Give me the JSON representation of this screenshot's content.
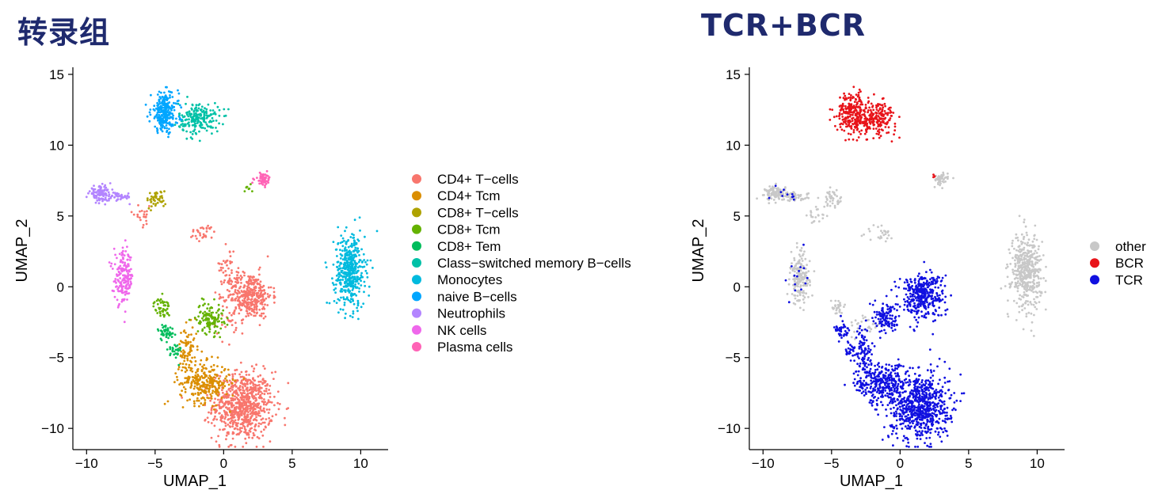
{
  "chart_data": [
    {
      "type": "scatter",
      "title": "转录组",
      "xlabel": "UMAP_1",
      "ylabel": "UMAP_2",
      "xlim": [
        -11,
        12
      ],
      "ylim": [
        -11.5,
        15.5
      ],
      "xticks": [
        -10,
        -5,
        0,
        5,
        10
      ],
      "yticks": [
        -10,
        -5,
        0,
        5,
        10,
        15
      ],
      "legend_position": "right",
      "legend": [
        {
          "label": "CD4+ T−cells",
          "color": "#F8766D"
        },
        {
          "label": "CD4+ Tcm",
          "color": "#DB8E00"
        },
        {
          "label": "CD8+ T−cells",
          "color": "#AEA200"
        },
        {
          "label": "CD8+ Tcm",
          "color": "#64B200"
        },
        {
          "label": "CD8+ Tem",
          "color": "#00BD5C"
        },
        {
          "label": "Class−switched memory B−cells",
          "color": "#00C1A7"
        },
        {
          "label": "Monocytes",
          "color": "#00BADE"
        },
        {
          "label": "naive B−cells",
          "color": "#00A6FF"
        },
        {
          "label": "Neutrophils",
          "color": "#B385FF"
        },
        {
          "label": "NK cells",
          "color": "#EF67EB"
        },
        {
          "label": "Plasma cells",
          "color": "#FF63B6"
        }
      ],
      "clusters": [
        {
          "group": "CD4+ T−cells",
          "cx": 1.4,
          "cy": -8.4,
          "sx": 1.1,
          "sy": 1.2,
          "n": 750
        },
        {
          "group": "CD4+ T−cells",
          "cx": 1.9,
          "cy": -0.6,
          "sx": 0.8,
          "sy": 0.8,
          "n": 360
        },
        {
          "group": "CD4+ T−cells",
          "cx": -1.5,
          "cy": 3.8,
          "sx": 0.5,
          "sy": 0.3,
          "n": 30
        },
        {
          "group": "CD4+ T−cells",
          "cx": 0.3,
          "cy": 1.6,
          "sx": 0.3,
          "sy": 0.9,
          "n": 40
        },
        {
          "group": "CD4+ T−cells",
          "cx": -6.0,
          "cy": 5.0,
          "sx": 0.4,
          "sy": 0.35,
          "n": 22
        },
        {
          "group": "CD4+ T−cells",
          "cx": 0.5,
          "cy": -2.5,
          "sx": 0.7,
          "sy": 0.7,
          "n": 25
        },
        {
          "group": "CD4+ Tcm",
          "cx": -1.4,
          "cy": -6.8,
          "sx": 0.9,
          "sy": 0.7,
          "n": 280
        },
        {
          "group": "CD4+ Tcm",
          "cx": -2.6,
          "cy": -4.5,
          "sx": 0.35,
          "sy": 0.9,
          "n": 80
        },
        {
          "group": "CD8+ T−cells",
          "cx": -4.9,
          "cy": 6.2,
          "sx": 0.35,
          "sy": 0.3,
          "n": 45
        },
        {
          "group": "CD8+ Tcm",
          "cx": -1.0,
          "cy": -2.2,
          "sx": 0.5,
          "sy": 0.55,
          "n": 120
        },
        {
          "group": "CD8+ Tcm",
          "cx": -4.5,
          "cy": -1.5,
          "sx": 0.3,
          "sy": 0.35,
          "n": 45
        },
        {
          "group": "CD8+ Tcm",
          "cx": 1.8,
          "cy": 7.0,
          "sx": 0.2,
          "sy": 0.15,
          "n": 8
        },
        {
          "group": "CD8+ Tem",
          "cx": -4.2,
          "cy": -3.2,
          "sx": 0.3,
          "sy": 0.3,
          "n": 45
        },
        {
          "group": "CD8+ Tem",
          "cx": -3.6,
          "cy": -4.6,
          "sx": 0.25,
          "sy": 0.35,
          "n": 28
        },
        {
          "group": "Class−switched memory B−cells",
          "cx": -1.8,
          "cy": 11.9,
          "sx": 0.75,
          "sy": 0.55,
          "n": 200
        },
        {
          "group": "Monocytes",
          "cx": 9.2,
          "cy": 1.1,
          "sx": 0.55,
          "sy": 1.3,
          "n": 440
        },
        {
          "group": "naive B−cells",
          "cx": -4.3,
          "cy": 12.3,
          "sx": 0.5,
          "sy": 0.7,
          "n": 260
        },
        {
          "group": "Neutrophils",
          "cx": -9.0,
          "cy": 6.6,
          "sx": 0.4,
          "sy": 0.25,
          "n": 110
        },
        {
          "group": "Neutrophils",
          "cx": -7.6,
          "cy": 6.35,
          "sx": 0.45,
          "sy": 0.15,
          "n": 45
        },
        {
          "group": "NK cells",
          "cx": -7.3,
          "cy": 0.6,
          "sx": 0.35,
          "sy": 0.9,
          "n": 180
        },
        {
          "group": "Plasma cells",
          "cx": 2.9,
          "cy": 7.6,
          "sx": 0.3,
          "sy": 0.22,
          "n": 55
        }
      ]
    },
    {
      "type": "scatter",
      "title": "TCR+BCR",
      "xlabel": "UMAP_1",
      "ylabel": "UMAP_2",
      "xlim": [
        -11,
        12
      ],
      "ylim": [
        -11.5,
        15.5
      ],
      "xticks": [
        -10,
        -5,
        0,
        5,
        10
      ],
      "yticks": [
        -10,
        -5,
        0,
        5,
        10,
        15
      ],
      "legend_position": "right",
      "legend": [
        {
          "label": "other",
          "color": "#C8C8C8"
        },
        {
          "label": "BCR",
          "color": "#E8141A"
        },
        {
          "label": "TCR",
          "color": "#1010E0"
        }
      ],
      "clusters": [
        {
          "group": "other",
          "cx": 9.2,
          "cy": 1.1,
          "sx": 0.55,
          "sy": 1.3,
          "n": 440
        },
        {
          "group": "other",
          "cx": -9.0,
          "cy": 6.6,
          "sx": 0.4,
          "sy": 0.25,
          "n": 110
        },
        {
          "group": "other",
          "cx": -7.6,
          "cy": 6.35,
          "sx": 0.45,
          "sy": 0.15,
          "n": 45
        },
        {
          "group": "other",
          "cx": -7.3,
          "cy": 0.6,
          "sx": 0.35,
          "sy": 0.9,
          "n": 170
        },
        {
          "group": "other",
          "cx": 2.9,
          "cy": 7.6,
          "sx": 0.3,
          "sy": 0.22,
          "n": 50
        },
        {
          "group": "other",
          "cx": -4.9,
          "cy": 6.2,
          "sx": 0.35,
          "sy": 0.3,
          "n": 40
        },
        {
          "group": "other",
          "cx": -1.5,
          "cy": 3.8,
          "sx": 0.5,
          "sy": 0.3,
          "n": 25
        },
        {
          "group": "other",
          "cx": -4.5,
          "cy": -1.5,
          "sx": 0.3,
          "sy": 0.35,
          "n": 30
        },
        {
          "group": "other",
          "cx": -2.5,
          "cy": -2.8,
          "sx": 0.6,
          "sy": 0.4,
          "n": 30
        },
        {
          "group": "other",
          "cx": -6.0,
          "cy": 5.0,
          "sx": 0.4,
          "sy": 0.35,
          "n": 20
        },
        {
          "group": "BCR",
          "cx": -1.8,
          "cy": 11.9,
          "sx": 0.75,
          "sy": 0.55,
          "n": 200
        },
        {
          "group": "BCR",
          "cx": -3.5,
          "cy": 12.3,
          "sx": 0.55,
          "sy": 0.7,
          "n": 240
        },
        {
          "group": "BCR",
          "cx": 2.4,
          "cy": 7.8,
          "sx": 0.15,
          "sy": 0.15,
          "n": 4
        },
        {
          "group": "TCR",
          "cx": 1.4,
          "cy": -8.4,
          "sx": 1.1,
          "sy": 1.2,
          "n": 750
        },
        {
          "group": "TCR",
          "cx": 1.6,
          "cy": -0.6,
          "sx": 0.8,
          "sy": 0.8,
          "n": 360
        },
        {
          "group": "TCR",
          "cx": -1.4,
          "cy": -6.8,
          "sx": 0.9,
          "sy": 0.7,
          "n": 280
        },
        {
          "group": "TCR",
          "cx": -2.6,
          "cy": -4.5,
          "sx": 0.35,
          "sy": 0.9,
          "n": 80
        },
        {
          "group": "TCR",
          "cx": -1.0,
          "cy": -2.2,
          "sx": 0.5,
          "sy": 0.55,
          "n": 110
        },
        {
          "group": "TCR",
          "cx": -4.2,
          "cy": -3.2,
          "sx": 0.3,
          "sy": 0.3,
          "n": 40
        },
        {
          "group": "TCR",
          "cx": -3.6,
          "cy": -4.6,
          "sx": 0.25,
          "sy": 0.35,
          "n": 28
        },
        {
          "group": "TCR",
          "cx": -7.3,
          "cy": 0.6,
          "sx": 0.4,
          "sy": 0.9,
          "n": 14
        },
        {
          "group": "TCR",
          "cx": -8.5,
          "cy": 6.5,
          "sx": 0.7,
          "sy": 0.3,
          "n": 10
        }
      ]
    }
  ]
}
